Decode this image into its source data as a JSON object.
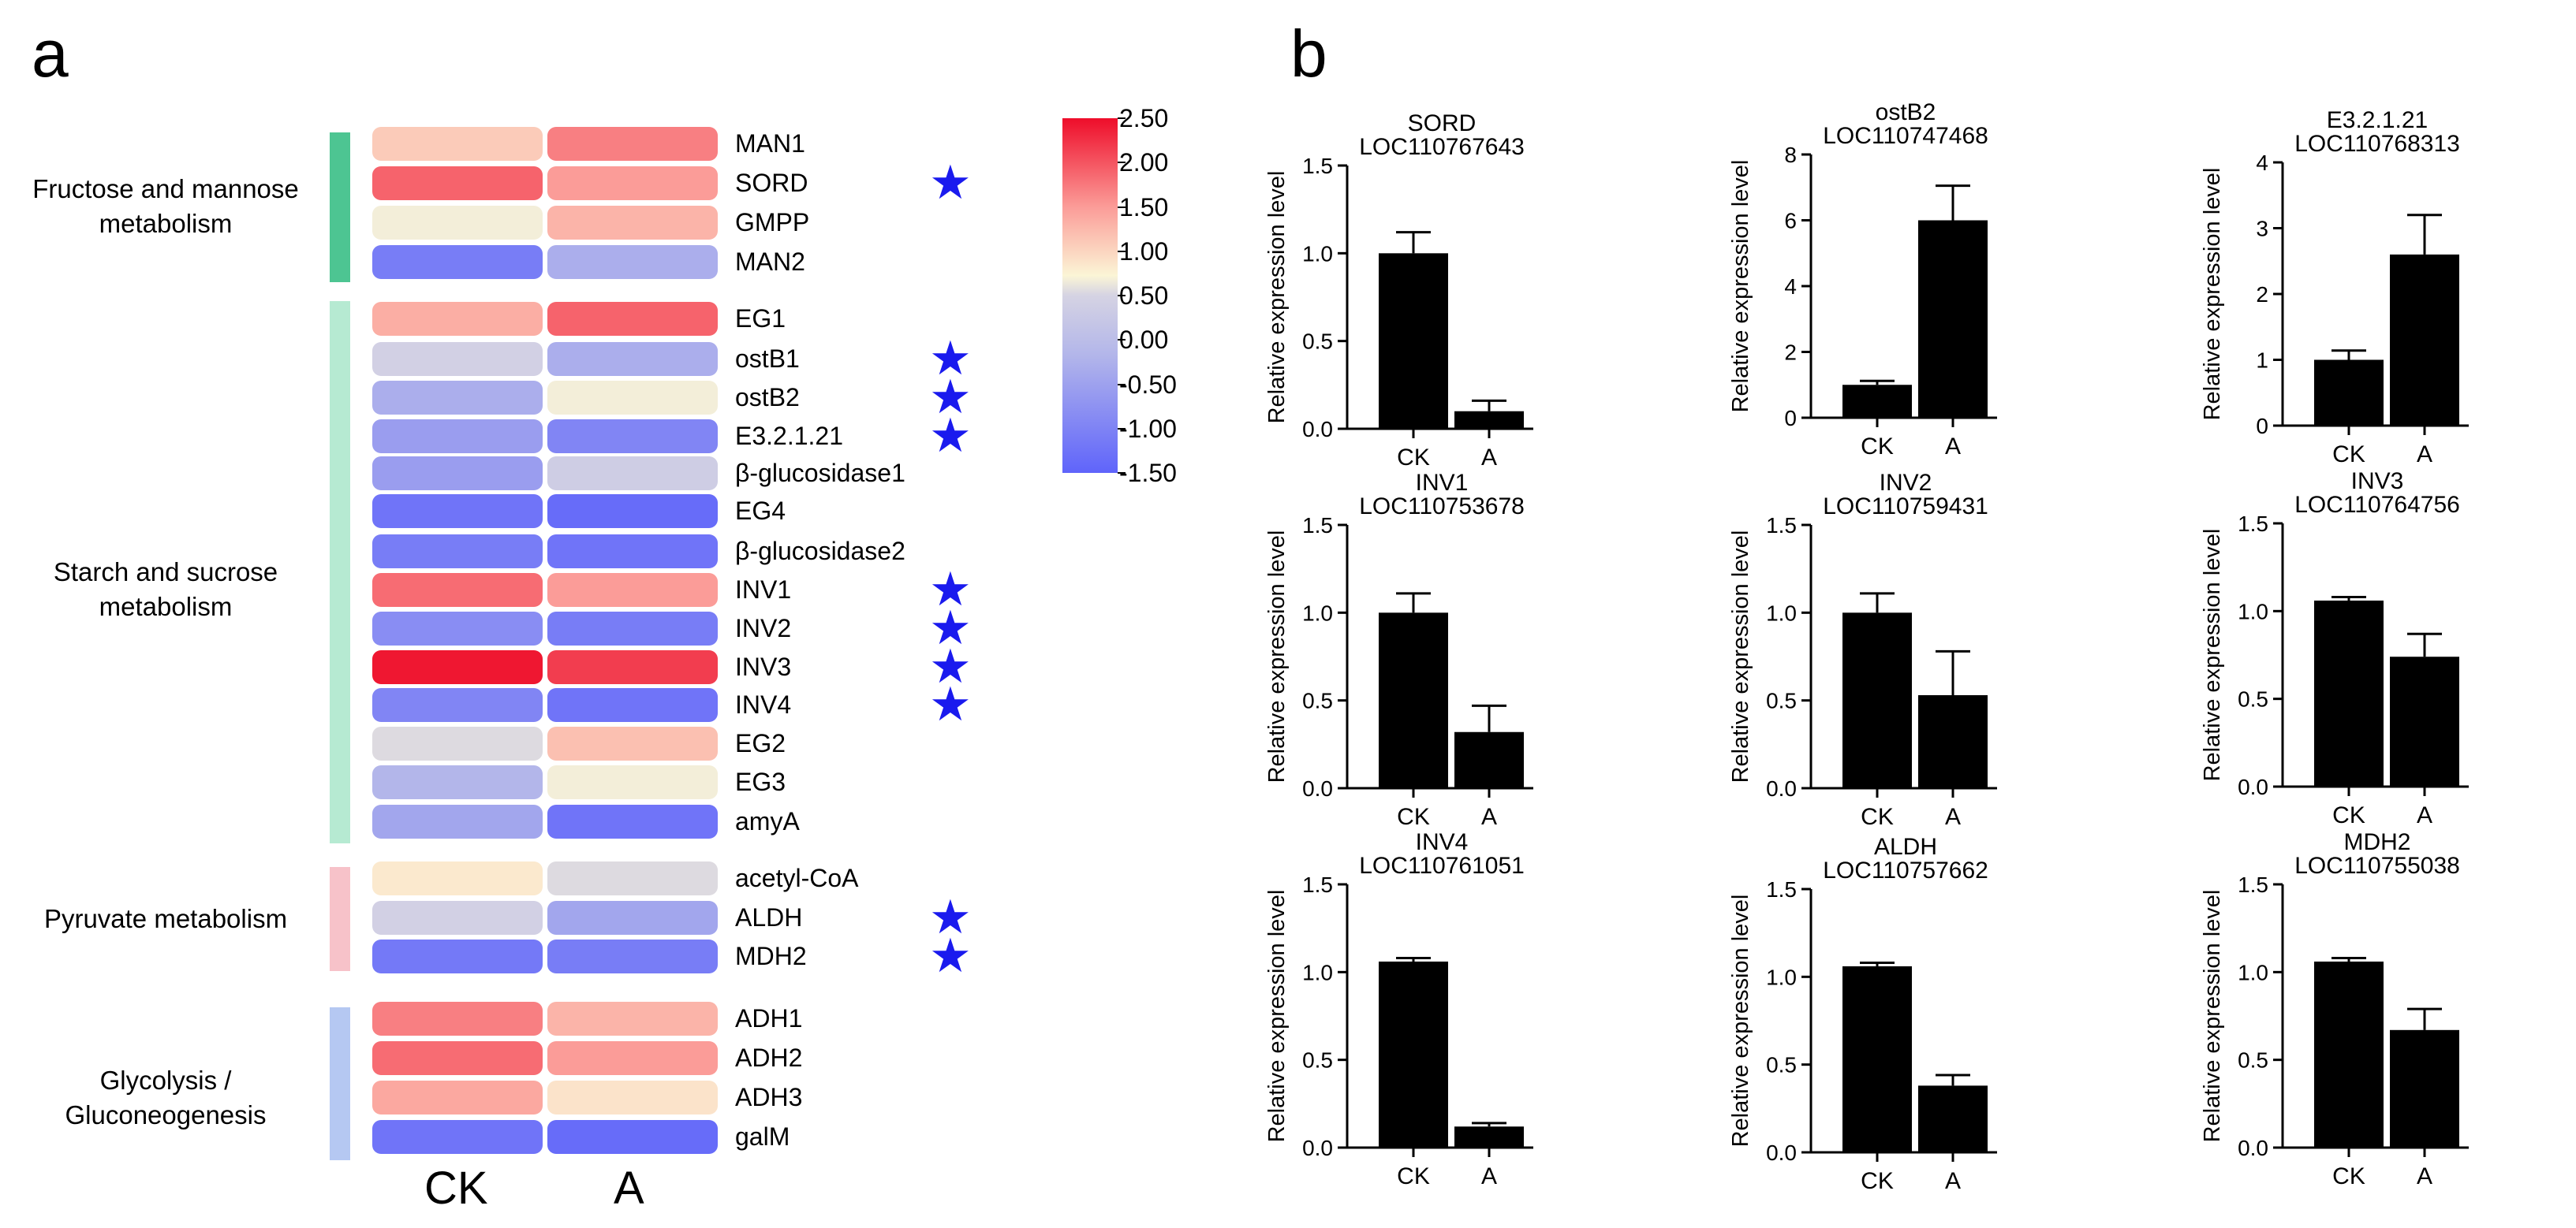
{
  "panel_a": {
    "label": "a",
    "groups": [
      "CK",
      "A"
    ],
    "pathways": [
      {
        "name": "Fructose and mannose metabolism",
        "line1": "Fructose and mannose",
        "line2": "metabolism",
        "color": "#4dc592"
      },
      {
        "name": "Starch and sucrose metabolism",
        "line1": "Starch and sucrose",
        "line2": "metabolism",
        "color": "#b6ead2"
      },
      {
        "name": "Pyruvate metabolism",
        "line1": "Pyruvate metabolism",
        "line2": "",
        "color": "#f7c2c9"
      },
      {
        "name": "Glycolysis / Gluconeogenesis",
        "line1": "Glycolysis /",
        "line2": "Gluconeogenesis",
        "color": "#b5c8f2"
      }
    ],
    "genes": [
      {
        "name": "MAN1",
        "pathway": 0,
        "star": false,
        "ck": 0.6,
        "a": 1.3
      },
      {
        "name": "SORD",
        "pathway": 0,
        "star": true,
        "ck": 1.6,
        "a": 1.0
      },
      {
        "name": "GMPP",
        "pathway": 0,
        "star": false,
        "ck": 0.2,
        "a": 0.8
      },
      {
        "name": "MAN2",
        "pathway": 0,
        "star": false,
        "ck": -1.2,
        "a": -0.6
      },
      {
        "name": "EG1",
        "pathway": 1,
        "star": false,
        "ck": 0.85,
        "a": 1.6
      },
      {
        "name": "ostB1",
        "pathway": 1,
        "star": true,
        "ck": -0.05,
        "a": -0.6
      },
      {
        "name": "ostB2",
        "pathway": 1,
        "star": true,
        "ck": -0.6,
        "a": 0.2
      },
      {
        "name": "E3.2.1.21",
        "pathway": 1,
        "star": true,
        "ck": -0.8,
        "a": -1.1
      },
      {
        "name": "β-glucosidase1",
        "pathway": 1,
        "star": false,
        "ck": -0.8,
        "a": -0.1
      },
      {
        "name": "EG4",
        "pathway": 1,
        "star": false,
        "ck": -1.3,
        "a": -1.4
      },
      {
        "name": "β-glucosidase2",
        "pathway": 1,
        "star": false,
        "ck": -1.2,
        "a": -1.3
      },
      {
        "name": "INV1",
        "pathway": 1,
        "star": true,
        "ck": 1.5,
        "a": 1.0
      },
      {
        "name": "INV2",
        "pathway": 1,
        "star": true,
        "ck": -1.0,
        "a": -1.2
      },
      {
        "name": "INV3",
        "pathway": 1,
        "star": true,
        "ck": 2.4,
        "a": 2.0
      },
      {
        "name": "INV4",
        "pathway": 1,
        "star": true,
        "ck": -1.1,
        "a": -1.3
      },
      {
        "name": "EG2",
        "pathway": 1,
        "star": false,
        "ck": 0.05,
        "a": 0.7
      },
      {
        "name": "EG3",
        "pathway": 1,
        "star": false,
        "ck": -0.5,
        "a": 0.2
      },
      {
        "name": "amyA",
        "pathway": 1,
        "star": false,
        "ck": -0.7,
        "a": -1.3
      },
      {
        "name": "acetyl-CoA",
        "pathway": 2,
        "star": false,
        "ck": 0.35,
        "a": 0.05
      },
      {
        "name": "ALDH",
        "pathway": 2,
        "star": true,
        "ck": -0.05,
        "a": -0.7
      },
      {
        "name": "MDH2",
        "pathway": 2,
        "star": true,
        "ck": -1.25,
        "a": -1.2
      },
      {
        "name": "ADH1",
        "pathway": 3,
        "star": false,
        "ck": 1.3,
        "a": 0.8
      },
      {
        "name": "ADH2",
        "pathway": 3,
        "star": false,
        "ck": 1.5,
        "a": 1.0
      },
      {
        "name": "ADH3",
        "pathway": 3,
        "star": false,
        "ck": 0.9,
        "a": 0.4
      },
      {
        "name": "galM",
        "pathway": 3,
        "star": false,
        "ck": -1.3,
        "a": -1.4
      }
    ],
    "star_symbol": "★",
    "colorbar": {
      "min": -1.5,
      "max": 2.5,
      "labels": [
        "2.50",
        "2.00",
        "1.50",
        "1.00",
        "0.50",
        "0.00",
        "-0.50",
        "-1.00",
        "-1.50"
      ],
      "colors": {
        "high": "#ee0d2a",
        "mid": "#fbf5d6",
        "low": "#5f64fb"
      }
    }
  },
  "panel_b": {
    "label": "b",
    "ylabel": "Relative expression level",
    "bar_color": "#000000"
  },
  "chart_data": [
    {
      "type": "bar",
      "title": "SORD",
      "subtitle": "LOC110767643",
      "categories": [
        "CK",
        "A"
      ],
      "values": [
        1.0,
        0.1
      ],
      "errors": [
        0.12,
        0.06
      ],
      "ylim": [
        0,
        1.5
      ],
      "yticks": [
        "0.0",
        "0.5",
        "1.0",
        "1.5"
      ],
      "ylabel": "Relative expression level"
    },
    {
      "type": "bar",
      "title": "ostB2",
      "subtitle": "LOC110747468",
      "categories": [
        "CK",
        "A"
      ],
      "values": [
        1.0,
        6.0
      ],
      "errors": [
        0.12,
        1.05
      ],
      "ylim": [
        0,
        8
      ],
      "yticks": [
        "0",
        "2",
        "4",
        "6",
        "8"
      ],
      "ylabel": "Relative expression level"
    },
    {
      "type": "bar",
      "title": "E3.2.1.21",
      "subtitle": "LOC110768313",
      "categories": [
        "CK",
        "A"
      ],
      "values": [
        1.0,
        2.6
      ],
      "errors": [
        0.14,
        0.6
      ],
      "ylim": [
        0,
        4
      ],
      "yticks": [
        "0",
        "1",
        "2",
        "3",
        "4"
      ],
      "ylabel": "Relative expression level"
    },
    {
      "type": "bar",
      "title": "INV1",
      "subtitle": "LOC110753678",
      "categories": [
        "CK",
        "A"
      ],
      "values": [
        1.0,
        0.32
      ],
      "errors": [
        0.11,
        0.15
      ],
      "ylim": [
        0,
        1.5
      ],
      "yticks": [
        "0.0",
        "0.5",
        "1.0",
        "1.5"
      ],
      "ylabel": "Relative expression level"
    },
    {
      "type": "bar",
      "title": "INV2",
      "subtitle": "LOC110759431",
      "categories": [
        "CK",
        "A"
      ],
      "values": [
        1.0,
        0.53
      ],
      "errors": [
        0.11,
        0.25
      ],
      "ylim": [
        0,
        1.5
      ],
      "yticks": [
        "0.0",
        "0.5",
        "1.0",
        "1.5"
      ],
      "ylabel": "Relative expression level"
    },
    {
      "type": "bar",
      "title": "INV3",
      "subtitle": "LOC110764756",
      "categories": [
        "CK",
        "A"
      ],
      "values": [
        1.06,
        0.74
      ],
      "errors": [
        0.02,
        0.13
      ],
      "ylim": [
        0,
        1.5
      ],
      "yticks": [
        "0.0",
        "0.5",
        "1.0",
        "1.5"
      ],
      "ylabel": "Relative expression level"
    },
    {
      "type": "bar",
      "title": "INV4",
      "subtitle": "LOC110761051",
      "categories": [
        "CK",
        "A"
      ],
      "values": [
        1.06,
        0.12
      ],
      "errors": [
        0.02,
        0.02
      ],
      "ylim": [
        0,
        1.5
      ],
      "yticks": [
        "0.0",
        "0.5",
        "1.0",
        "1.5"
      ],
      "ylabel": "Relative expression level"
    },
    {
      "type": "bar",
      "title": "ALDH",
      "subtitle": "LOC110757662",
      "categories": [
        "CK",
        "A"
      ],
      "values": [
        1.06,
        0.38
      ],
      "errors": [
        0.02,
        0.06
      ],
      "ylim": [
        0,
        1.5
      ],
      "yticks": [
        "0.0",
        "0.5",
        "1.0",
        "1.5"
      ],
      "ylabel": "Relative expression level"
    },
    {
      "type": "bar",
      "title": "MDH2",
      "subtitle": "LOC110755038",
      "categories": [
        "CK",
        "A"
      ],
      "values": [
        1.06,
        0.67
      ],
      "errors": [
        0.02,
        0.12
      ],
      "ylim": [
        0,
        1.5
      ],
      "yticks": [
        "0.0",
        "0.5",
        "1.0",
        "1.5"
      ],
      "ylabel": "Relative expression level"
    }
  ]
}
